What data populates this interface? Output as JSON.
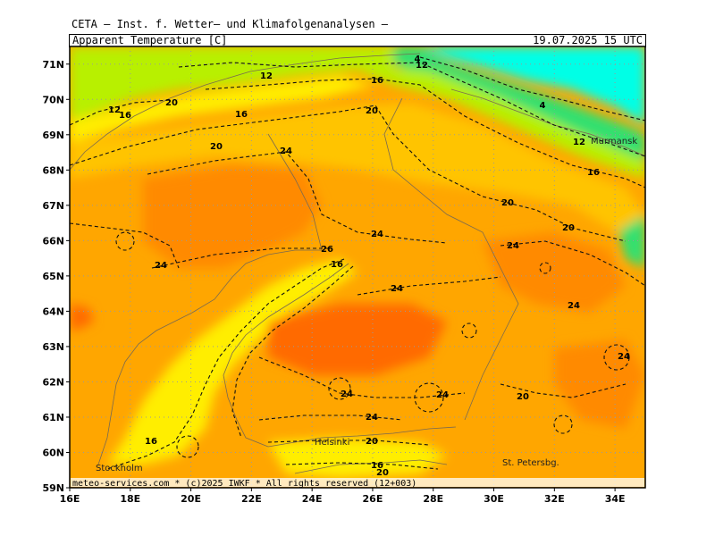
{
  "header": {
    "title": "CETA — Inst. f. Wetter— und Klimafolgenanalysen —",
    "parameter": "Apparent_Temperature [C]",
    "valid_time": "19.07.2025 15 UTC"
  },
  "map": {
    "lon_ticks": [
      "16E",
      "18E",
      "20E",
      "22E",
      "24E",
      "26E",
      "28E",
      "30E",
      "32E",
      "34E"
    ],
    "lat_ticks": [
      "59N",
      "60N",
      "61N",
      "62N",
      "63N",
      "64N",
      "65N",
      "66N",
      "67N",
      "68N",
      "69N",
      "70N",
      "71N"
    ],
    "lon_range": [
      16,
      35
    ],
    "lat_range": [
      59,
      71.5
    ],
    "grid": "dotted",
    "colors": {
      "cold": "#00ffe6",
      "cool": "#33e070",
      "mild": "#b8f000",
      "yellow": "#ffee00",
      "warm": "#ffc400",
      "orange": "#ffa600",
      "hot": "#ff8a00",
      "hotter": "#ff6a00"
    },
    "places": [
      {
        "name": "Murmansk"
      },
      {
        "name": "Helsinki"
      },
      {
        "name": "Stockholm"
      },
      {
        "name": "St. Petersbg."
      }
    ],
    "contour_labels": [
      "12",
      "4",
      "12",
      "16",
      "20",
      "16",
      "12",
      "16",
      "20",
      "24",
      "20",
      "4",
      "12",
      "16",
      "20",
      "20",
      "24",
      "24",
      "26",
      "16",
      "24",
      "24",
      "24",
      "24",
      "24",
      "24",
      "20",
      "16",
      "20",
      "16",
      "20",
      "24"
    ],
    "footer": "meteo-services.com * (c)2025 IWKF * All rights reserved (12+003)"
  }
}
